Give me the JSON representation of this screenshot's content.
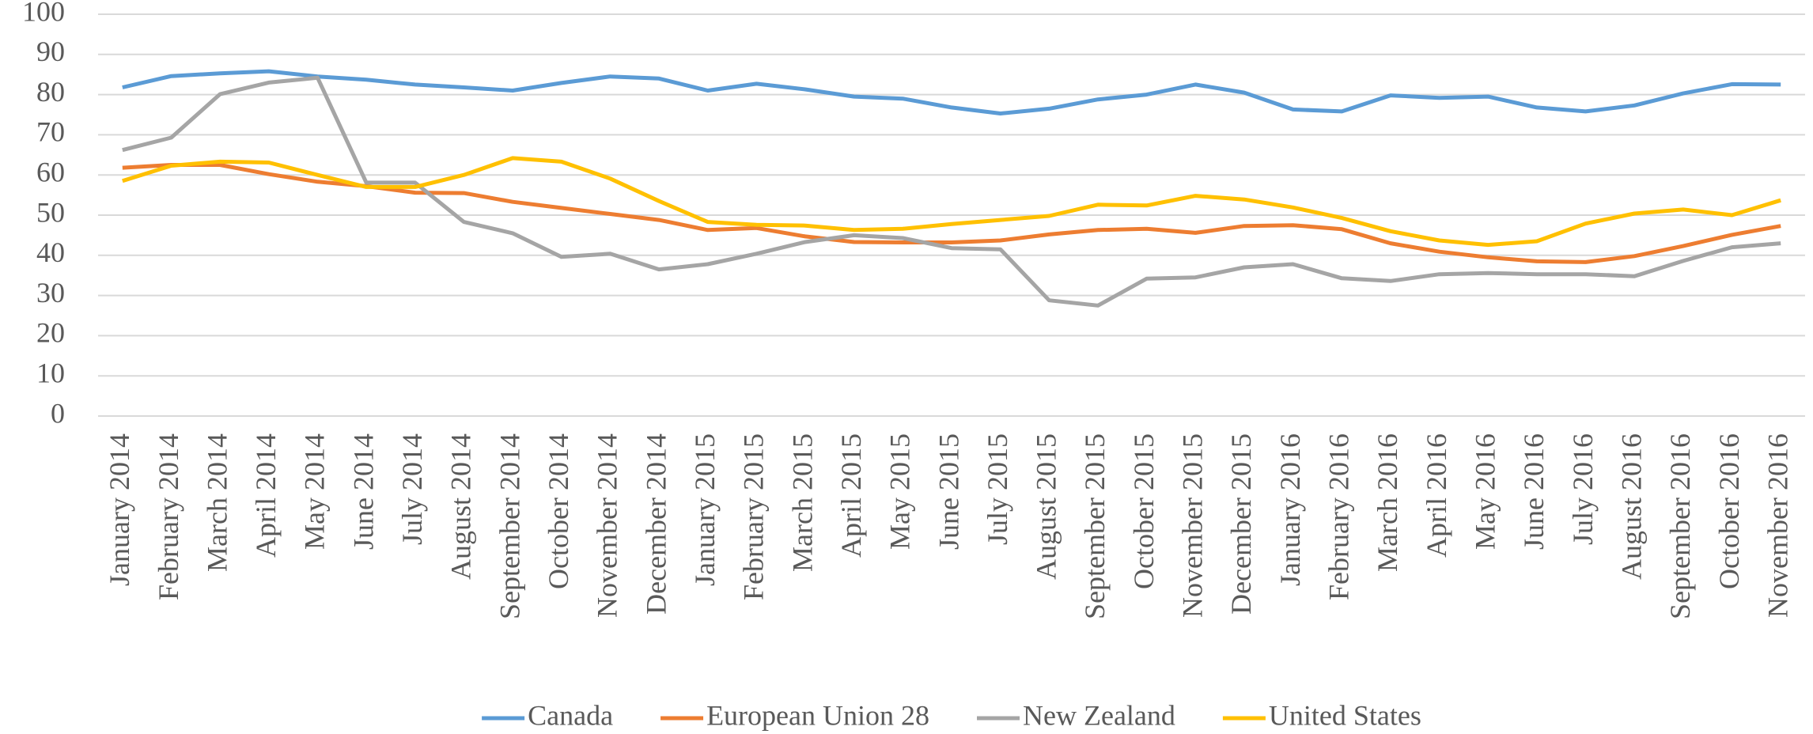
{
  "chart_data": {
    "type": "line",
    "categories": [
      "January 2014",
      "February 2014",
      "March 2014",
      "April 2014",
      "May 2014",
      "June 2014",
      "July 2014",
      "August 2014",
      "September 2014",
      "October 2014",
      "November 2014",
      "December 2014",
      "January 2015",
      "February 2015",
      "March 2015",
      "April 2015",
      "May 2015",
      "June 2015",
      "July 2015",
      "August 2015",
      "September 2015",
      "October 2015",
      "November 2015",
      "December 2015",
      "January 2016",
      "February 2016",
      "March 2016",
      "April 2016",
      "May 2016",
      "June 2016",
      "July 2016",
      "August 2016",
      "September 2016",
      "October 2016",
      "November 2016"
    ],
    "series": [
      {
        "name": "Canada",
        "color": "#5b9bd5",
        "values": [
          81.8,
          84.6,
          85.3,
          85.8,
          84.5,
          83.7,
          82.5,
          81.8,
          81.0,
          82.9,
          84.5,
          84.0,
          81.0,
          82.7,
          81.3,
          79.5,
          79.0,
          76.8,
          75.3,
          76.5,
          78.8,
          80.0,
          82.5,
          80.5,
          76.3,
          75.8,
          79.8,
          79.2,
          79.5,
          76.8,
          75.8,
          77.3,
          80.3,
          82.6,
          82.5
        ]
      },
      {
        "name": "European Union 28",
        "color": "#ed7d31",
        "values": [
          61.8,
          62.5,
          62.5,
          60.2,
          58.3,
          57.2,
          55.6,
          55.5,
          53.3,
          51.8,
          50.3,
          48.8,
          46.3,
          46.8,
          44.7,
          43.3,
          43.2,
          43.2,
          43.7,
          45.2,
          46.3,
          46.6,
          45.6,
          47.3,
          47.5,
          46.5,
          43.0,
          40.9,
          39.5,
          38.5,
          38.3,
          39.8,
          42.3,
          45.1,
          47.3
        ]
      },
      {
        "name": "New Zealand",
        "color": "#a5a5a5",
        "values": [
          66.2,
          69.3,
          80.1,
          83.0,
          84.2,
          58.1,
          58.1,
          48.3,
          45.5,
          39.6,
          40.4,
          36.5,
          37.8,
          40.4,
          43.3,
          45.0,
          44.3,
          41.8,
          41.5,
          28.8,
          27.5,
          34.2,
          34.5,
          37.0,
          37.8,
          34.3,
          33.6,
          35.3,
          35.6,
          35.3,
          35.3,
          34.8,
          38.6,
          42.0,
          43.0
        ]
      },
      {
        "name": "United States",
        "color": "#ffc000",
        "values": [
          58.5,
          62.3,
          63.3,
          63.1,
          60.0,
          57.0,
          57.0,
          60.0,
          64.2,
          63.3,
          59.1,
          53.5,
          48.3,
          47.6,
          47.4,
          46.3,
          46.6,
          47.8,
          48.8,
          49.8,
          52.6,
          52.4,
          54.8,
          53.9,
          51.9,
          49.3,
          46.0,
          43.7,
          42.6,
          43.5,
          47.9,
          50.4,
          51.4,
          50.0,
          53.7
        ]
      }
    ],
    "ylim": [
      0,
      100
    ],
    "yticks": [
      0,
      10,
      20,
      30,
      40,
      50,
      60,
      70,
      80,
      90,
      100
    ],
    "grid": true,
    "legend": "bottom"
  }
}
